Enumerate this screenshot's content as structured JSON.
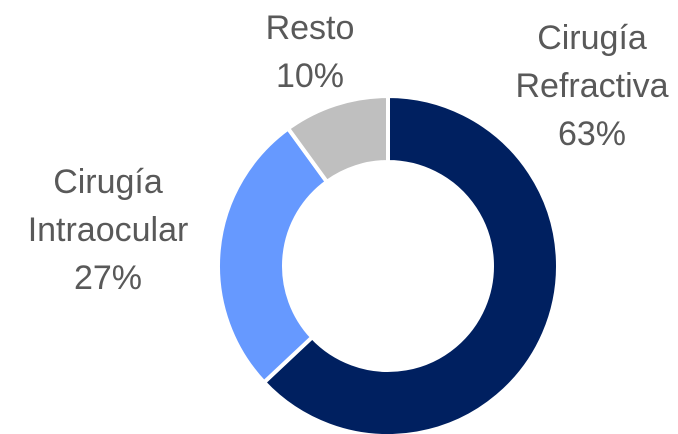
{
  "chart_data": {
    "type": "pie",
    "categories": [
      "Cirugía Refractiva",
      "Cirugía Intraocular",
      "Resto"
    ],
    "values": [
      63,
      27,
      10
    ],
    "value_labels": [
      "63%",
      "27%",
      "10%"
    ],
    "colors": [
      "#002060",
      "#6699ff",
      "#bfbfbf"
    ]
  }
}
